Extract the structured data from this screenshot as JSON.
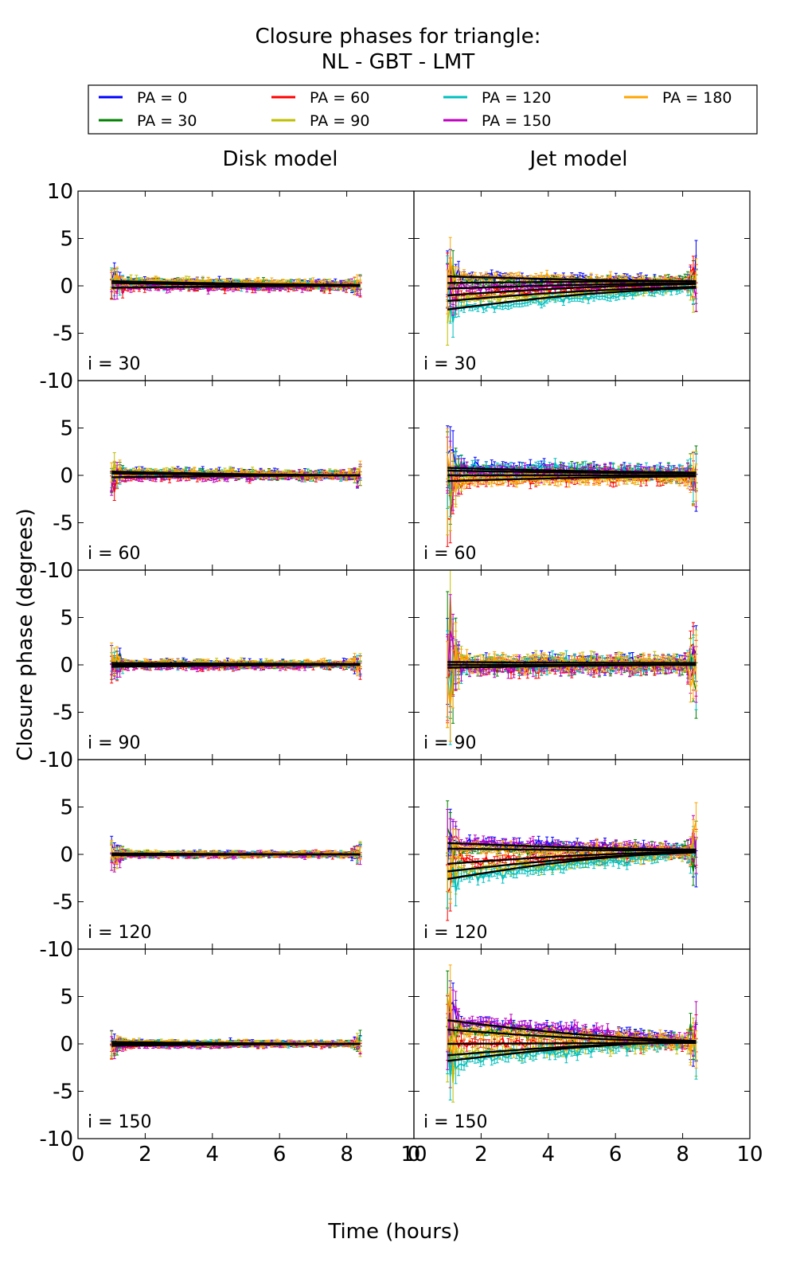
{
  "figure": {
    "title_line1": "Closure phases for triangle:",
    "title_line2": "NL - GBT - LMT",
    "xlabel": "Time (hours)",
    "ylabel": "Closure phase (degrees)",
    "column_titles": [
      "Disk model",
      "Jet model"
    ]
  },
  "legend": {
    "entries": [
      {
        "label": "PA = 0",
        "color": "#0000ff"
      },
      {
        "label": "PA = 30",
        "color": "#008000"
      },
      {
        "label": "PA = 60",
        "color": "#ff0000"
      },
      {
        "label": "PA = 90",
        "color": "#bfbf00"
      },
      {
        "label": "PA = 120",
        "color": "#00bfbf"
      },
      {
        "label": "PA = 150",
        "color": "#bf00bf"
      },
      {
        "label": "PA = 180",
        "color": "#ffa500"
      }
    ]
  },
  "chart_data": {
    "type": "line",
    "xlim": [
      0,
      10
    ],
    "ylim": [
      -10,
      10
    ],
    "xticks": [
      0,
      2,
      4,
      6,
      8,
      10
    ],
    "yticks": [
      -10,
      -5,
      0,
      5,
      10
    ],
    "grid": false,
    "legend_position": "top",
    "x_range_data": [
      1.0,
      8.4
    ],
    "row_labels": [
      "i = 30",
      "i = 60",
      "i = 90",
      "i = 120",
      "i = 150"
    ],
    "panels": [
      {
        "column": "Disk model",
        "row": "i = 30",
        "model_curves": [
          [
            0.5,
            0.1
          ],
          [
            0.3,
            0.0
          ],
          [
            -0.2,
            0.0
          ]
        ],
        "scatter": 0.3,
        "edge_spike": 1.5
      },
      {
        "column": "Jet model",
        "row": "i = 30",
        "model_curves": [
          [
            1.0,
            0.5
          ],
          [
            0.3,
            0.5
          ],
          [
            -1.0,
            0.2
          ],
          [
            -1.6,
            -0.1
          ],
          [
            -2.5,
            -0.2
          ],
          [
            -0.3,
            0.3
          ]
        ],
        "scatter": 0.35,
        "edge_spike": 4.0
      },
      {
        "column": "Disk model",
        "row": "i = 60",
        "model_curves": [
          [
            0.4,
            0.0
          ],
          [
            0.2,
            0.0
          ],
          [
            -0.2,
            0.0
          ]
        ],
        "scatter": 0.3,
        "edge_spike": 1.5
      },
      {
        "column": "Jet model",
        "row": "i = 60",
        "model_curves": [
          [
            0.8,
            0.3
          ],
          [
            0.5,
            0.2
          ],
          [
            -0.6,
            -0.1
          ],
          [
            0.0,
            0.0
          ]
        ],
        "scatter": 0.5,
        "edge_spike": 5.0
      },
      {
        "column": "Disk model",
        "row": "i = 90",
        "model_curves": [
          [
            0.2,
            0.1
          ],
          [
            0.0,
            0.0
          ],
          [
            -0.2,
            0.0
          ]
        ],
        "scatter": 0.25,
        "edge_spike": 1.5
      },
      {
        "column": "Jet model",
        "row": "i = 90",
        "model_curves": [
          [
            0.3,
            0.2
          ],
          [
            0.0,
            0.0
          ],
          [
            -0.3,
            0.0
          ]
        ],
        "scatter": 0.6,
        "edge_spike": 8.0
      },
      {
        "column": "Disk model",
        "row": "i = 120",
        "model_curves": [
          [
            0.1,
            0.0
          ],
          [
            0.0,
            0.0
          ],
          [
            -0.1,
            0.0
          ]
        ],
        "scatter": 0.2,
        "edge_spike": 1.5
      },
      {
        "column": "Jet model",
        "row": "i = 120",
        "model_curves": [
          [
            1.2,
            0.5
          ],
          [
            0.6,
            0.4
          ],
          [
            -1.0,
            0.3
          ],
          [
            -1.8,
            0.2
          ],
          [
            -2.6,
            0.3
          ]
        ],
        "scatter": 0.45,
        "edge_spike": 5.0
      },
      {
        "column": "Disk model",
        "row": "i = 150",
        "model_curves": [
          [
            0.2,
            0.0
          ],
          [
            0.0,
            0.0
          ],
          [
            -0.2,
            0.0
          ]
        ],
        "scatter": 0.2,
        "edge_spike": 1.2
      },
      {
        "column": "Jet model",
        "row": "i = 150",
        "model_curves": [
          [
            2.5,
            0.3
          ],
          [
            1.5,
            0.2
          ],
          [
            0.0,
            0.1
          ],
          [
            -1.2,
            0.2
          ],
          [
            -1.8,
            0.3
          ]
        ],
        "scatter": 0.5,
        "edge_spike": 5.0
      }
    ]
  }
}
